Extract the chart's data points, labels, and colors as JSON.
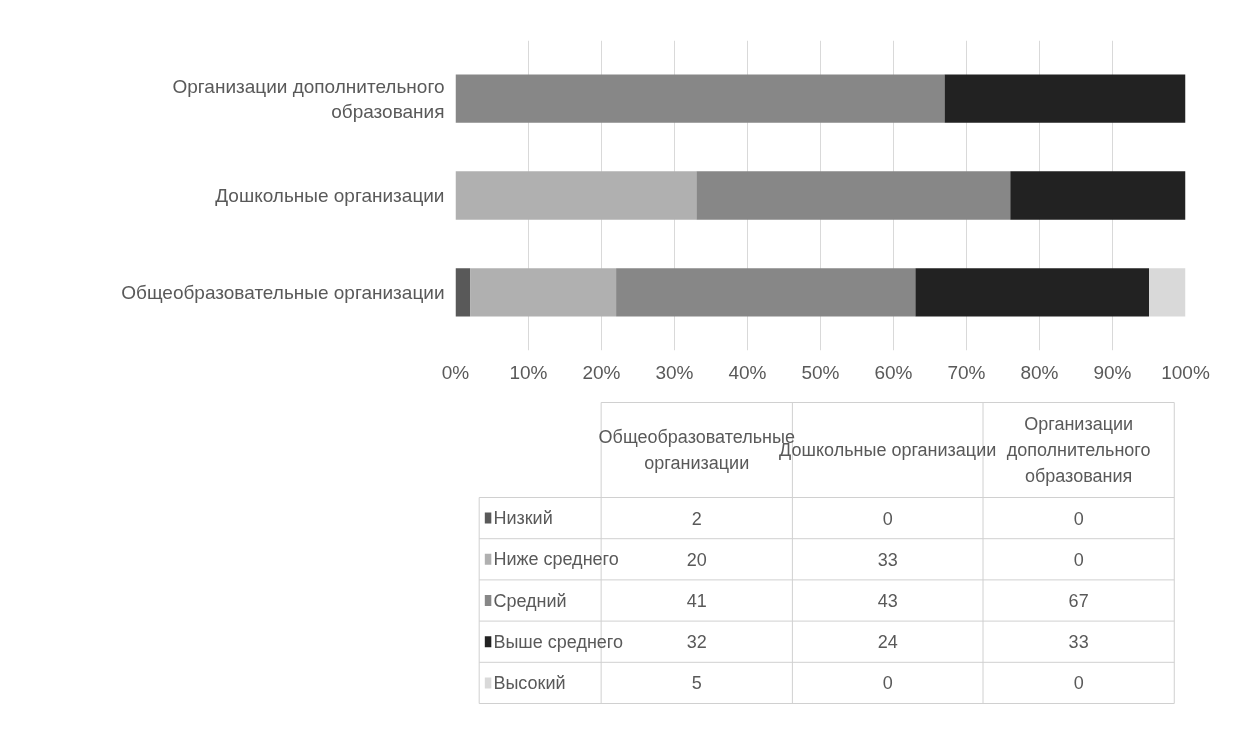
{
  "chart_data": [
    {
      "type": "bar",
      "orientation": "horizontal",
      "stacked": true,
      "categories": [
        "Организации дополнительного образования",
        "Дошкольные организации",
        "Общеобразовательные организации"
      ],
      "series": [
        {
          "color": "#595959",
          "values": [
            0,
            0,
            2
          ]
        },
        {
          "color": "#b0b0b0",
          "values": [
            0,
            33,
            20
          ]
        },
        {
          "color": "#878787",
          "values": [
            67,
            43,
            41
          ]
        },
        {
          "color": "#222222",
          "values": [
            33,
            24,
            32
          ]
        },
        {
          "color": "#d9d9d9",
          "values": [
            0,
            0,
            5
          ]
        }
      ],
      "xlim": [
        0,
        100
      ],
      "xticks": [
        {
          "value": 0,
          "label": "0%"
        },
        {
          "value": 10,
          "label": "10%"
        },
        {
          "value": 20,
          "label": "20%"
        },
        {
          "value": 30,
          "label": "30%"
        },
        {
          "value": 40,
          "label": "40%"
        },
        {
          "value": 50,
          "label": "50%"
        },
        {
          "value": 60,
          "label": "60%"
        },
        {
          "value": 70,
          "label": "70%"
        },
        {
          "value": 80,
          "label": "80%"
        },
        {
          "value": 90,
          "label": "90%"
        },
        {
          "value": 100,
          "label": "100%"
        }
      ],
      "grid": "x"
    },
    {
      "type": "other",
      "categories": [
        "Общеобразовательные организации",
        "Дошкольные организации",
        "Организации дополнительного образования"
      ],
      "series": [
        {
          "name": "Низкий",
          "color": "#595959",
          "values": [
            2,
            0,
            0
          ]
        },
        {
          "name": "Ниже среднего",
          "color": "#b0b0b0",
          "values": [
            20,
            33,
            0
          ]
        },
        {
          "name": "Средний",
          "color": "#878787",
          "values": [
            41,
            43,
            67
          ]
        },
        {
          "name": "Выше среднего",
          "color": "#222222",
          "values": [
            32,
            24,
            33
          ]
        },
        {
          "name": "Высокий",
          "color": "#d9d9d9",
          "values": [
            5,
            0,
            0
          ]
        }
      ],
      "data_labels": true
    }
  ]
}
